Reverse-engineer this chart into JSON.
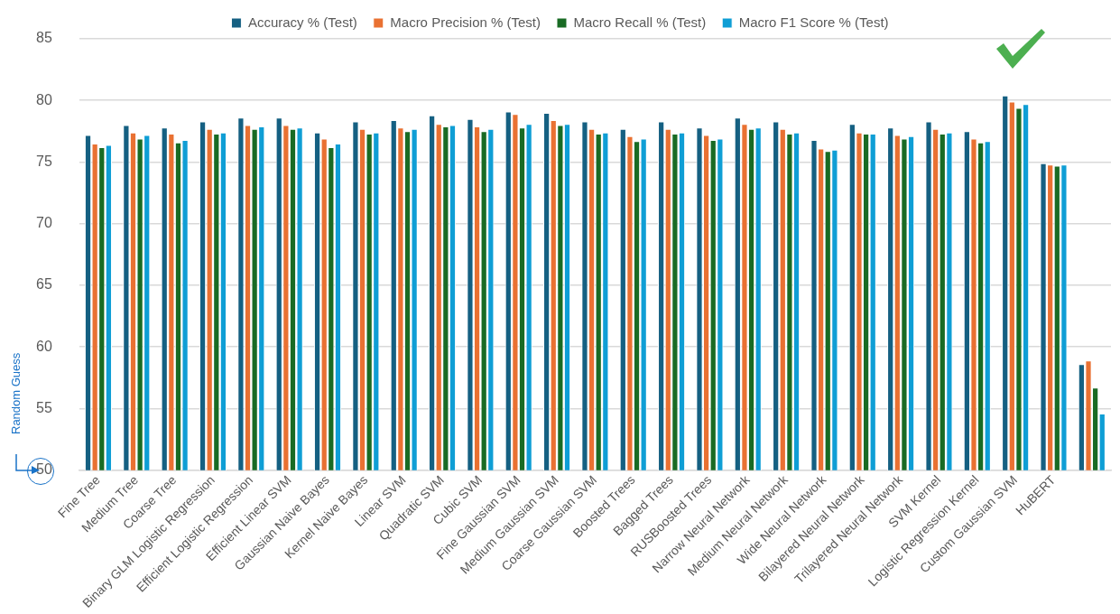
{
  "chart_data": {
    "type": "bar",
    "categories": [
      "Fine Tree",
      "Medium Tree",
      "Coarse Tree",
      "Binary GLM Logistic Regression",
      "Efficient Logistic Regression",
      "Efficient Linear SVM",
      "Gaussian Naive Bayes",
      "Kernel Naive Bayes",
      "Linear SVM",
      "Quadratic SVM",
      "Cubic SVM",
      "Fine Gaussian SVM",
      "Medium Gaussian SVM",
      "Coarse Gaussian SVM",
      "Boosted Trees",
      "Bagged Trees",
      "RUSBoosted Trees",
      "Narrow Neural Network",
      "Medium Neural Network",
      "Wide Neural Network",
      "Bilayered Neural Network",
      "Trilayered Neural Network",
      "SVM Kernel",
      "Logistic Regression Kernel",
      "Custom Gaussian SVM",
      "HuBERT",
      null
    ],
    "series": [
      {
        "name": "Accuracy % (Test)",
        "color": "#156082",
        "values": [
          77.2,
          78.0,
          77.8,
          78.3,
          78.6,
          78.6,
          77.4,
          78.3,
          78.4,
          78.8,
          78.5,
          79.1,
          79.0,
          78.3,
          77.7,
          78.3,
          77.8,
          78.6,
          78.3,
          76.8,
          78.1,
          77.8,
          78.3,
          77.5,
          80.4,
          74.9,
          58.6
        ]
      },
      {
        "name": "Macro Precision % (Test)",
        "color": "#e97132",
        "values": [
          76.5,
          77.4,
          77.3,
          77.7,
          78.0,
          78.0,
          76.9,
          77.7,
          77.8,
          78.1,
          77.9,
          78.9,
          78.4,
          77.7,
          77.1,
          77.7,
          77.2,
          78.1,
          77.7,
          76.1,
          77.4,
          77.2,
          77.7,
          76.9,
          79.9,
          74.8,
          58.9
        ]
      },
      {
        "name": "Macro Recall % (Test)",
        "color": "#196b24",
        "values": [
          76.2,
          76.9,
          76.6,
          77.3,
          77.7,
          77.7,
          76.2,
          77.3,
          77.5,
          77.9,
          77.5,
          77.8,
          78.0,
          77.3,
          76.7,
          77.3,
          76.8,
          77.7,
          77.3,
          75.9,
          77.3,
          76.9,
          77.3,
          76.6,
          79.4,
          74.7,
          56.7
        ]
      },
      {
        "name": "Macro F1 Score % (Test)",
        "color": "#0f9ed5",
        "values": [
          76.4,
          77.2,
          76.8,
          77.4,
          77.9,
          77.8,
          76.5,
          77.4,
          77.7,
          78.0,
          77.7,
          78.1,
          78.1,
          77.4,
          76.9,
          77.4,
          76.9,
          77.8,
          77.4,
          76.0,
          77.3,
          77.1,
          77.4,
          76.7,
          79.7,
          74.8,
          54.6
        ]
      }
    ],
    "ylim": [
      50,
      85
    ],
    "yticks": [
      50,
      55,
      60,
      65,
      70,
      75,
      80,
      85
    ],
    "grid": "y",
    "legend": "top",
    "annotations": [
      "Random Guess"
    ]
  }
}
